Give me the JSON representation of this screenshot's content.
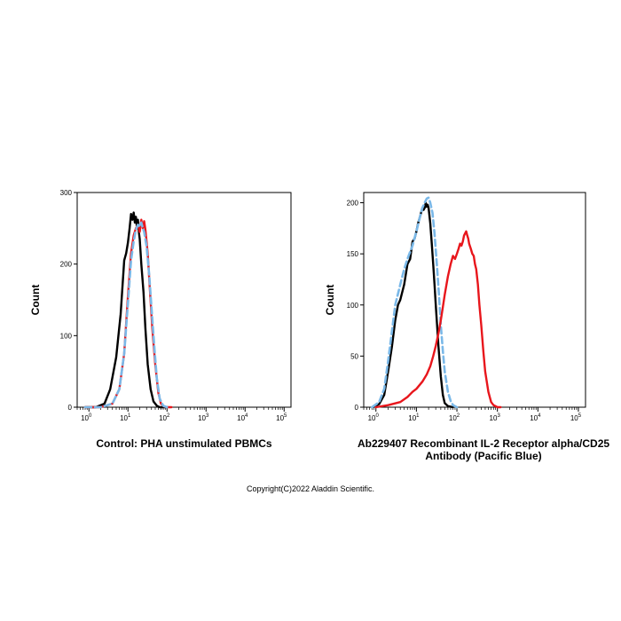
{
  "chart_data": [
    {
      "type": "line",
      "title": "",
      "ylabel": "Count",
      "xlabel": "",
      "caption_lines": [
        "Control: PHA unstimulated PBMCs"
      ],
      "x_scale": "log",
      "xlim": [
        0.5,
        150000
      ],
      "ylim": [
        0,
        300
      ],
      "x_ticks": [
        {
          "base": "10",
          "exp": "0",
          "value": 1
        },
        {
          "base": "10",
          "exp": "1",
          "value": 10
        },
        {
          "base": "10",
          "exp": "2",
          "value": 100
        },
        {
          "base": "10",
          "exp": "3",
          "value": 1000
        },
        {
          "base": "10",
          "exp": "4",
          "value": 10000
        },
        {
          "base": "10",
          "exp": "5",
          "value": 100000
        }
      ],
      "y_ticks": [
        "0",
        "100",
        "200",
        "300"
      ],
      "y_tick_values": [
        0,
        100,
        200,
        300
      ],
      "series": [
        {
          "color": "#000000",
          "style": "solid",
          "x": [
            0.8,
            1.5,
            2.5,
            3.5,
            5,
            6.5,
            8,
            9,
            10,
            11,
            12,
            13,
            14,
            15,
            16,
            17,
            18,
            19,
            20,
            22,
            25,
            28,
            32,
            38,
            45,
            55,
            65,
            80,
            100
          ],
          "y": [
            0,
            0,
            5,
            25,
            70,
            130,
            205,
            215,
            230,
            250,
            270,
            262,
            272,
            258,
            266,
            250,
            262,
            245,
            235,
            200,
            160,
            110,
            60,
            25,
            8,
            2,
            0,
            0,
            0
          ]
        },
        {
          "color": "#e8161c",
          "style": "solid",
          "x": [
            0.8,
            2,
            4,
            6,
            8,
            10,
            12,
            14,
            16,
            18,
            20,
            22,
            24,
            26,
            28,
            32,
            36,
            42,
            50,
            60,
            70,
            85,
            100,
            130
          ],
          "y": [
            0,
            0,
            5,
            25,
            75,
            155,
            215,
            240,
            250,
            255,
            245,
            262,
            250,
            260,
            248,
            215,
            170,
            110,
            60,
            20,
            5,
            1,
            0,
            0
          ]
        },
        {
          "color": "#7ab8e8",
          "style": "dashed",
          "x": [
            0.8,
            2,
            4,
            6,
            8,
            10,
            12,
            14,
            16,
            18,
            20,
            22,
            24,
            26,
            30,
            35,
            40,
            48,
            55,
            65,
            80,
            100
          ],
          "y": [
            0,
            0,
            5,
            25,
            75,
            145,
            205,
            232,
            248,
            255,
            252,
            258,
            250,
            245,
            225,
            185,
            140,
            80,
            40,
            12,
            2,
            0
          ]
        }
      ]
    },
    {
      "type": "line",
      "title": "",
      "ylabel": "Count",
      "xlabel": "",
      "caption_lines": [
        "Ab229407 Recombinant IL-2 Receptor alpha/CD25",
        "Antibody (Pacific Blue)"
      ],
      "x_scale": "log",
      "xlim": [
        0.5,
        150000
      ],
      "ylim": [
        0,
        210
      ],
      "x_ticks": [
        {
          "base": "10",
          "exp": "0",
          "value": 1
        },
        {
          "base": "10",
          "exp": "1",
          "value": 10
        },
        {
          "base": "10",
          "exp": "2",
          "value": 100
        },
        {
          "base": "10",
          "exp": "3",
          "value": 1000
        },
        {
          "base": "10",
          "exp": "4",
          "value": 10000
        },
        {
          "base": "10",
          "exp": "5",
          "value": 100000
        }
      ],
      "y_ticks": [
        "0",
        "50",
        "100",
        "150",
        "200"
      ],
      "y_tick_values": [
        0,
        50,
        100,
        150,
        200
      ],
      "series": [
        {
          "color": "#000000",
          "style": "solid",
          "x": [
            0.8,
            1.2,
            1.6,
            2,
            2.5,
            3,
            3.5,
            4,
            5,
            6,
            7,
            8,
            9,
            10,
            11,
            12,
            13,
            14,
            15,
            16,
            17,
            18,
            19,
            20,
            22,
            24,
            26,
            28,
            30,
            35,
            40,
            45,
            50,
            60,
            80
          ],
          "y": [
            0,
            3,
            12,
            35,
            60,
            85,
            100,
            105,
            120,
            140,
            145,
            162,
            165,
            172,
            180,
            185,
            190,
            195,
            193,
            195,
            200,
            196,
            198,
            195,
            180,
            160,
            140,
            120,
            100,
            60,
            30,
            12,
            4,
            1,
            0
          ]
        },
        {
          "color": "#7ab8e8",
          "style": "dashed",
          "x": [
            0.8,
            1.2,
            1.6,
            2,
            2.5,
            3,
            4,
            5,
            6,
            7,
            8,
            10,
            12,
            14,
            16,
            18,
            20,
            22,
            25,
            28,
            32,
            36,
            40,
            45,
            50,
            60,
            70,
            80,
            100
          ],
          "y": [
            0,
            5,
            18,
            45,
            75,
            100,
            120,
            135,
            145,
            152,
            158,
            172,
            185,
            195,
            200,
            204,
            205,
            200,
            190,
            170,
            140,
            110,
            80,
            55,
            35,
            15,
            6,
            2,
            0
          ]
        },
        {
          "color": "#e8161c",
          "style": "solid",
          "x": [
            1,
            2,
            4,
            6,
            8,
            10,
            14,
            18,
            22,
            26,
            30,
            35,
            40,
            45,
            50,
            60,
            70,
            80,
            90,
            100,
            110,
            120,
            130,
            140,
            150,
            160,
            170,
            180,
            190,
            200,
            220,
            240,
            260,
            280,
            300,
            330,
            360,
            400,
            450,
            500,
            600,
            700,
            800,
            1000,
            1200
          ],
          "y": [
            0,
            2,
            5,
            10,
            15,
            18,
            25,
            32,
            40,
            50,
            60,
            72,
            85,
            98,
            110,
            128,
            140,
            148,
            145,
            150,
            155,
            160,
            158,
            162,
            168,
            170,
            172,
            168,
            165,
            160,
            155,
            150,
            148,
            140,
            135,
            120,
            100,
            80,
            55,
            35,
            15,
            5,
            2,
            0,
            0
          ]
        }
      ]
    }
  ],
  "footer": {
    "copyright": "Copyright(C)2022 Aladdin Scientific."
  }
}
